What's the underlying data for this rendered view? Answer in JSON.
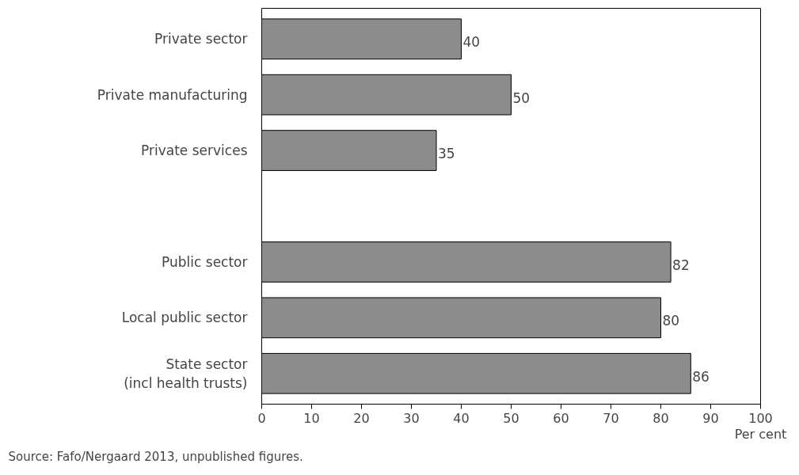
{
  "chart_data": {
    "type": "bar",
    "orientation": "horizontal",
    "categories": [
      "Private sector",
      "Private manufacturing",
      "Private services",
      null,
      "Public sector",
      "Local public sector",
      "State sector\n(incl health trusts)"
    ],
    "values": [
      40,
      50,
      35,
      null,
      82,
      80,
      86
    ],
    "color": "#8c8c8c",
    "xlim": [
      0,
      100
    ],
    "xticks": [
      0,
      10,
      20,
      30,
      40,
      50,
      60,
      70,
      80,
      90,
      100
    ],
    "xlabel": "Per cent",
    "data_labels": true,
    "grid": false,
    "annotations": [
      "Source: Fafo/Nergaard 2013, unpublished figures."
    ]
  }
}
